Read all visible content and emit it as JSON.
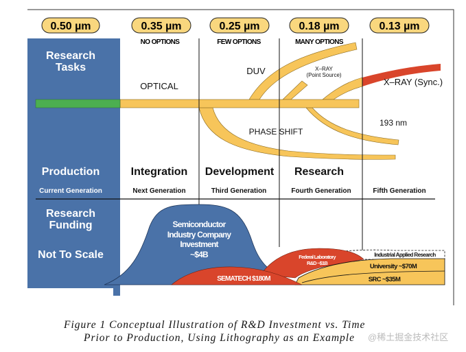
{
  "colors": {
    "blue": "#4a72a8",
    "yellow": "#f7c55a",
    "green": "#4caf50",
    "red": "#d9452b",
    "pill": "#f9d77e"
  },
  "nodes": [
    "0.50 µm",
    "0.35 µm",
    "0.25 µm",
    "0.18 µm",
    "0.13 µm"
  ],
  "options": [
    "NO OPTIONS",
    "FEW OPTIONS",
    "MANY OPTIONS"
  ],
  "panel": {
    "research_tasks": [
      "Research",
      "Tasks"
    ],
    "production": "Production",
    "current": "Current Generation",
    "funding": [
      "Research",
      "Funding"
    ],
    "not_to_scale": "Not To Scale"
  },
  "tech": {
    "optical": "OPTICAL",
    "duv": "DUV",
    "xray_point": [
      "X–RAY",
      "(Point Source)"
    ],
    "xray_sync": "X–RAY (Sync.)",
    "nm193": "193 nm",
    "phase_shift": "PHASE SHIFT"
  },
  "phases": [
    "Integration",
    "Development",
    "Research"
  ],
  "generations": [
    "Next Generation",
    "Third Generation",
    "Fourth Generation",
    "Fifth Generation"
  ],
  "funding": {
    "industry": [
      "Semiconductor",
      "Industry Company",
      "Investment",
      "~$4B"
    ],
    "sematech": "SEMATECH $180M",
    "federal": [
      "Federal Laboratory",
      "R&D ~$1B"
    ],
    "industrial_applied": "Industrial Applied Research",
    "university": "University ~$70M",
    "src": "SRC ~$35M"
  },
  "caption": [
    "Figure 1   Conceptual Illustration of R&D Investment vs. Time",
    "Prior to Production, Using Lithography as an Example"
  ],
  "watermark": "@稀土掘金技术社区"
}
